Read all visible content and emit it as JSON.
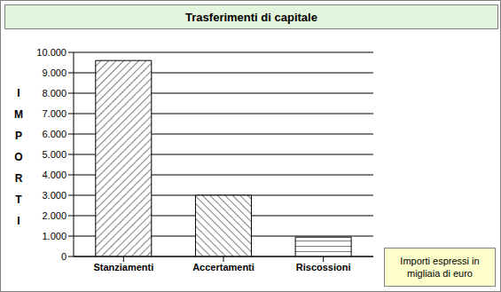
{
  "chart_data": {
    "type": "bar",
    "title": "Trasferimenti di capitale",
    "ylabel": "IMPORTI",
    "annotation": "Importi espressi in migliaia di euro",
    "categories": [
      "Stanziamenti",
      "Accertamenti",
      "Riscossioni"
    ],
    "values": [
      9600,
      3000,
      950
    ],
    "color": "#ffffff",
    "ylim": [
      0,
      10000
    ],
    "yticks": [
      0,
      {
        "value": 1000,
        "label": "1.000"
      },
      {
        "value": 2000,
        "label": "2.000"
      },
      {
        "value": 3000,
        "label": "3.000"
      },
      {
        "value": 4000,
        "label": "4.000"
      },
      {
        "value": 5000,
        "label": "5.000"
      },
      {
        "value": 6000,
        "label": "6.000"
      },
      {
        "value": 7000,
        "label": "7.000"
      },
      {
        "value": 8000,
        "label": "8.000"
      },
      {
        "value": 9000,
        "label": "9.000"
      },
      {
        "value": 10000,
        "label": "10.000"
      }
    ],
    "grid": true
  }
}
